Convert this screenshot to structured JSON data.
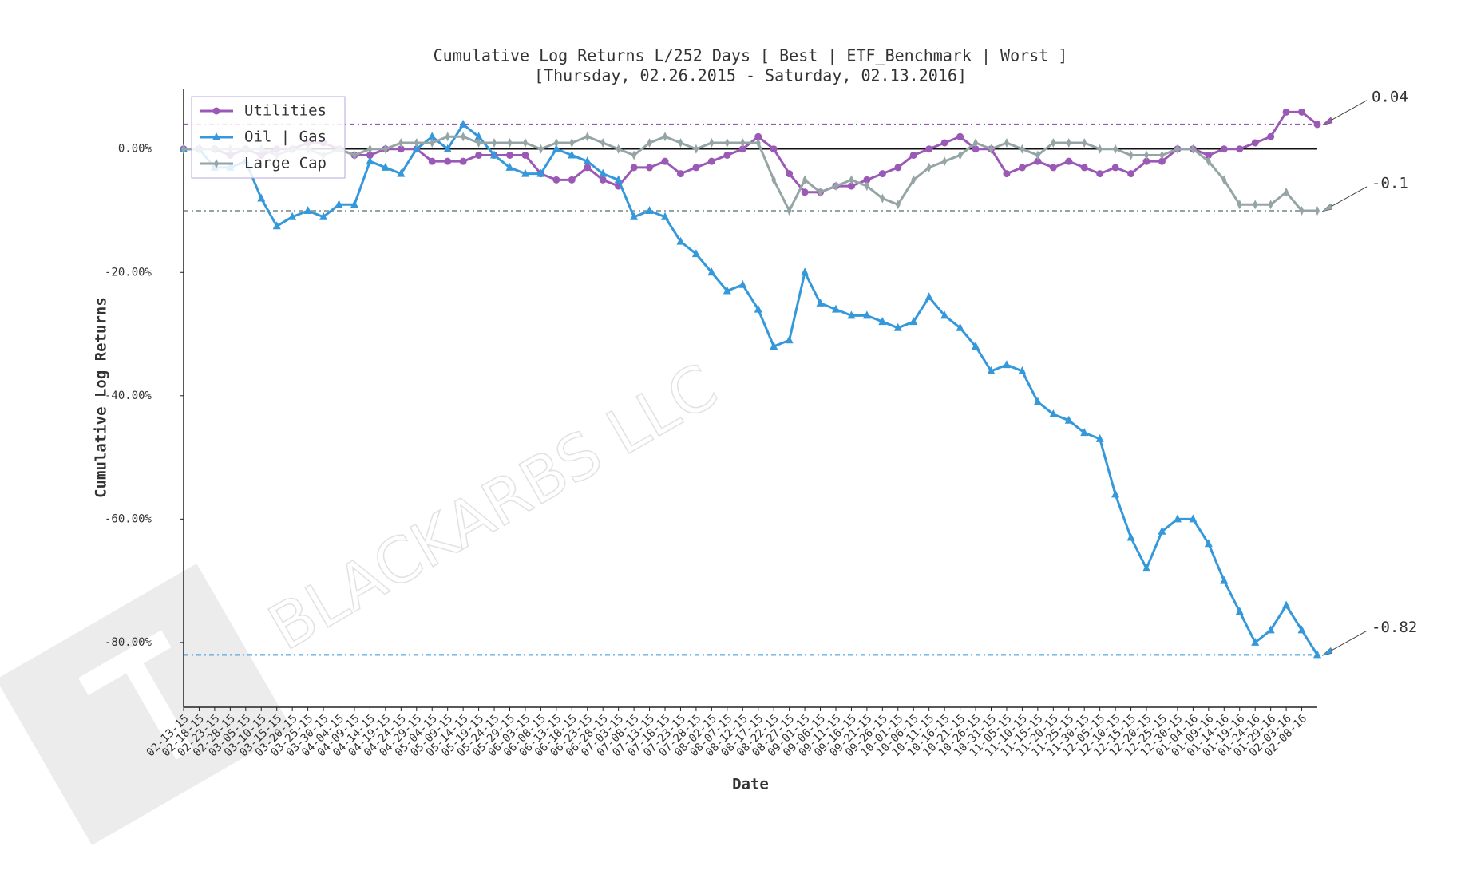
{
  "chart_data": {
    "type": "line",
    "title": "Cumulative Log Returns L/252 Days [ Best | ETF_Benchmark | Worst ]",
    "subtitle": "[Thursday, 02.26.2015 - Saturday, 02.13.2016]",
    "x_label": "Date",
    "y_label": "Cumulative Log Returns",
    "watermark": "BLACKARBS LLC",
    "categories": [
      "02-13-15",
      "02-18-15",
      "02-23-15",
      "02-28-15",
      "03-05-15",
      "03-10-15",
      "03-15-15",
      "03-20-15",
      "03-25-15",
      "03-30-15",
      "04-04-15",
      "04-09-15",
      "04-14-15",
      "04-19-15",
      "04-24-15",
      "04-29-15",
      "05-04-15",
      "05-09-15",
      "05-14-15",
      "05-19-15",
      "05-24-15",
      "05-29-15",
      "06-03-15",
      "06-08-15",
      "06-13-15",
      "06-18-15",
      "06-23-15",
      "06-28-15",
      "07-03-15",
      "07-08-15",
      "07-13-15",
      "07-18-15",
      "07-23-15",
      "07-28-15",
      "08-02-15",
      "08-07-15",
      "08-12-15",
      "08-17-15",
      "08-22-15",
      "08-27-15",
      "09-01-15",
      "09-06-15",
      "09-11-15",
      "09-16-15",
      "09-21-15",
      "09-26-15",
      "10-01-15",
      "10-06-15",
      "10-11-15",
      "10-16-15",
      "10-21-15",
      "10-26-15",
      "10-31-15",
      "11-05-15",
      "11-10-15",
      "11-15-15",
      "11-20-15",
      "11-25-15",
      "11-30-15",
      "12-05-15",
      "12-10-15",
      "12-15-15",
      "12-20-15",
      "12-25-15",
      "12-30-15",
      "01-04-16",
      "01-09-16",
      "01-14-16",
      "01-19-16",
      "01-24-16",
      "01-29-16",
      "02-03-16",
      "02-08-16",
      null
    ],
    "series": [
      {
        "name": "Utilities",
        "color": "#9b59b6",
        "marker": "circle",
        "values": [
          0,
          0,
          0,
          -0.01,
          0,
          -0.01,
          0,
          0,
          0.01,
          0.01,
          0,
          -0.01,
          -0.01,
          0,
          0,
          0,
          -0.02,
          -0.02,
          -0.02,
          -0.01,
          -0.01,
          -0.01,
          -0.01,
          -0.04,
          -0.05,
          -0.05,
          -0.03,
          -0.05,
          -0.06,
          -0.03,
          -0.03,
          -0.02,
          -0.04,
          -0.03,
          -0.02,
          -0.01,
          0,
          0.02,
          0,
          -0.04,
          -0.07,
          -0.07,
          -0.06,
          -0.06,
          -0.05,
          -0.04,
          -0.03,
          -0.01,
          0,
          0.01,
          0.02,
          0,
          0,
          -0.04,
          -0.03,
          -0.02,
          -0.03,
          -0.02,
          -0.03,
          -0.04,
          -0.03,
          -0.04,
          -0.02,
          -0.02,
          0,
          0,
          -0.01,
          0,
          0,
          0.01,
          0.02,
          0.06,
          0.06,
          0.04
        ]
      },
      {
        "name": "Oil | Gas",
        "color": "#3498db",
        "marker": "triangle",
        "values": [
          0,
          0,
          -0.03,
          -0.03,
          -0.02,
          -0.08,
          -0.125,
          -0.11,
          -0.1,
          -0.11,
          -0.09,
          -0.09,
          -0.02,
          -0.03,
          -0.04,
          0,
          0.02,
          0,
          0.04,
          0.02,
          -0.01,
          -0.03,
          -0.04,
          -0.04,
          0,
          -0.01,
          -0.02,
          -0.04,
          -0.05,
          -0.11,
          -0.1,
          -0.11,
          -0.15,
          -0.17,
          -0.2,
          -0.23,
          -0.22,
          -0.26,
          -0.32,
          -0.31,
          -0.2,
          -0.25,
          -0.26,
          -0.27,
          -0.27,
          -0.28,
          -0.29,
          -0.28,
          -0.24,
          -0.27,
          -0.29,
          -0.32,
          -0.36,
          -0.35,
          -0.36,
          -0.41,
          -0.43,
          -0.44,
          -0.46,
          -0.47,
          -0.56,
          -0.63,
          -0.68,
          -0.62,
          -0.6,
          -0.6,
          -0.64,
          -0.7,
          -0.75,
          -0.8,
          -0.78,
          -0.74,
          -0.78,
          -0.82
        ]
      },
      {
        "name": "Large Cap",
        "color": "#95a5a6",
        "marker": "diamond",
        "values": [
          0,
          0,
          0,
          0,
          0,
          0,
          -0.01,
          0,
          0,
          -0.01,
          0,
          -0.01,
          0,
          0,
          0.01,
          0.01,
          0.01,
          0.02,
          0.02,
          0.01,
          0.01,
          0.01,
          0.01,
          0,
          0.01,
          0.01,
          0.02,
          0.01,
          0,
          -0.01,
          0.01,
          0.02,
          0.01,
          0,
          0.01,
          0.01,
          0.01,
          0.01,
          -0.05,
          -0.1,
          -0.05,
          -0.07,
          -0.06,
          -0.05,
          -0.06,
          -0.08,
          -0.09,
          -0.05,
          -0.03,
          -0.02,
          -0.01,
          0.01,
          0,
          0.01,
          0,
          -0.01,
          0.01,
          0.01,
          0.01,
          0,
          0,
          -0.01,
          -0.01,
          -0.01,
          0,
          0,
          -0.02,
          -0.05,
          -0.09,
          -0.09,
          -0.09,
          -0.07,
          -0.1,
          -0.1
        ]
      }
    ],
    "ref_lines": [
      {
        "value": 0.04,
        "color": "#9b59b6"
      },
      {
        "value": -0.1,
        "color": "#95a5a6"
      },
      {
        "value": -0.82,
        "color": "#3498db"
      }
    ],
    "zero_line": true,
    "legend": "upper left",
    "ylim": [
      -0.905,
      0.098
    ],
    "yticks": [
      {
        "value": 0,
        "label": "0.00%"
      },
      {
        "value": -0.2,
        "label": "-20.00%"
      },
      {
        "value": -0.4,
        "label": "-40.00%"
      },
      {
        "value": -0.6,
        "label": "-60.00%"
      },
      {
        "value": -0.8,
        "label": "-80.00%"
      }
    ]
  }
}
